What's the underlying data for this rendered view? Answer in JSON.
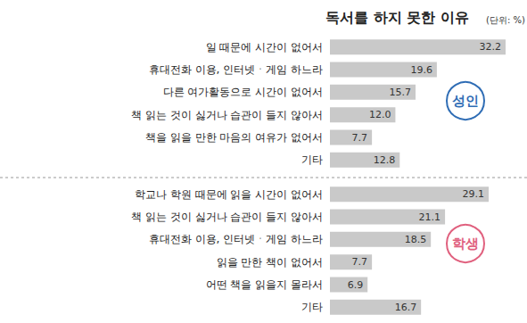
{
  "chart_data": [
    {
      "type": "bar",
      "title": "독서를 하지 못한 이유",
      "subtitle": "(단위: %)",
      "annotation": "성인",
      "orientation": "horizontal",
      "categories": [
        "일 때문에 시간이 없어서",
        "휴대전화 이용, 인터넷ㆍ게임 하느라",
        "다른 여가활동으로 시간이 없어서",
        "책 읽는 것이 싫거나 습관이 들지 않아서",
        "책을 읽을 만한 마음의 여유가 없어서",
        "기타"
      ],
      "values": [
        32.2,
        19.6,
        15.7,
        12.0,
        7.7,
        12.8
      ],
      "value_labels": [
        "32.2",
        "19.6",
        "15.7",
        "12.0",
        "7.7",
        "12.8"
      ],
      "color": "#c9c9c9",
      "xlim": [
        0,
        34
      ],
      "tick_labels": "y",
      "grid": false,
      "data_labels": true
    },
    {
      "type": "bar",
      "annotation": "학생",
      "orientation": "horizontal",
      "categories": [
        "학교나 학원 때문에 읽을 시간이 없어서",
        "책 읽는 것이 싫거나 습관이 들지 않아서",
        "휴대전화 이용, 인터넷ㆍ게임 하느라",
        "읽을 만한 책이 없어서",
        "어떤 책을 읽을지 몰라서",
        "기타"
      ],
      "values": [
        29.1,
        21.1,
        18.5,
        7.7,
        6.9,
        16.7
      ],
      "color": "#c9c9c9",
      "xlim": [
        0,
        34
      ],
      "tick_labels": "y",
      "grid": false,
      "data_labels": true
    }
  ]
}
